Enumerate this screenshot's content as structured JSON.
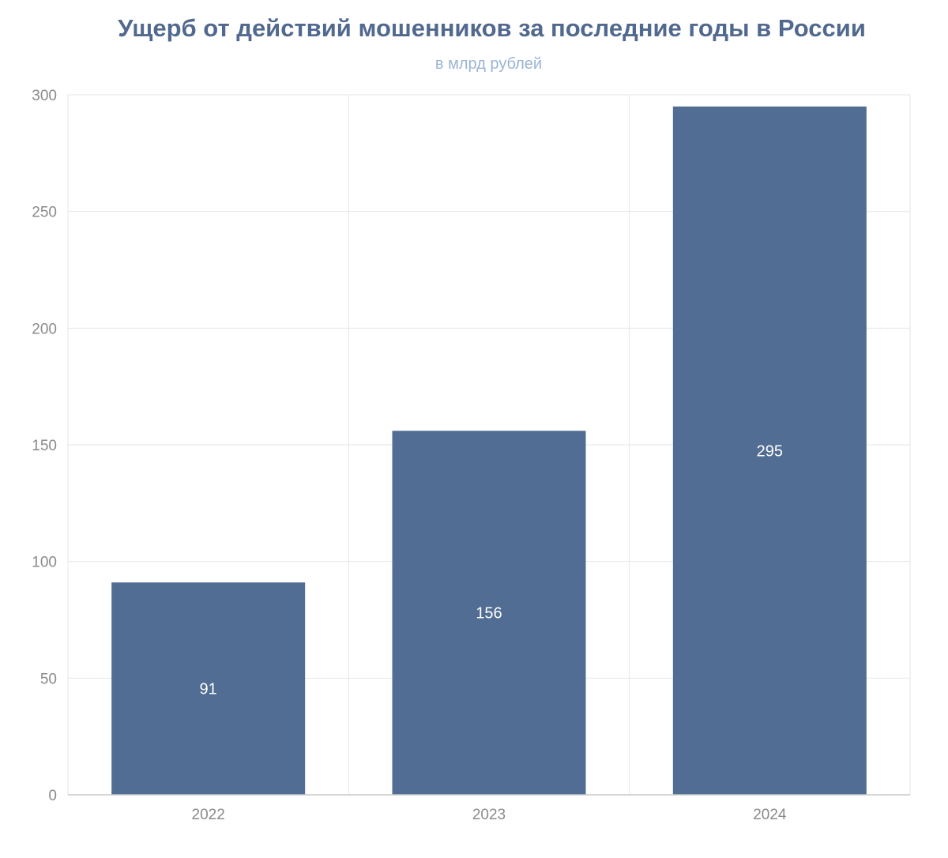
{
  "chart_data": {
    "type": "bar",
    "title": "Ущерб от действий мошенников за последние годы в России",
    "subtitle": "в млрд рублей",
    "categories": [
      "2022",
      "2023",
      "2024"
    ],
    "values": [
      91,
      156,
      295
    ],
    "data_labels": [
      "91",
      "156",
      "295"
    ],
    "ylim": [
      0,
      300
    ],
    "yticks": [
      0,
      50,
      100,
      150,
      200,
      250,
      300
    ],
    "grid": true,
    "legend": "none",
    "bar_color": "#516d93"
  }
}
